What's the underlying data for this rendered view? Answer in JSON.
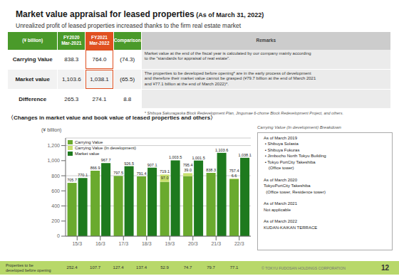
{
  "chart_data": {
    "type": "bar",
    "title": "〈Changes in market value and book value of leased properties and others〉",
    "ylabel": "(¥ billion)",
    "categories": [
      "15/3",
      "16/3",
      "17/3",
      "18/3",
      "19/3",
      "20/3",
      "21/3",
      "22/3"
    ],
    "series": [
      {
        "name": "Carrying Value",
        "color": "#6aaa2e",
        "values": [
          705.7,
          866.9,
          797.5,
          791.4,
          719.1,
          795.4,
          838.3,
          757.4
        ],
        "stacked": true
      },
      {
        "name": "Carrying Value (In development)",
        "color": "#c8e06e",
        "values": [
          0,
          0,
          0,
          0,
          97.0,
          39.0,
          0,
          6.6
        ],
        "value_labels": [
          null,
          null,
          null,
          null,
          "97.0",
          "39.0",
          null,
          "6.6"
        ],
        "stacked": true
      },
      {
        "name": "Market value",
        "color": "#1e7a1e",
        "values": [
          770.1,
          967.7,
          926.5,
          907.1,
          1003.5,
          1001.5,
          1103.6,
          1038.1
        ],
        "value_labels": [
          "770.1",
          "967.7",
          "926.5",
          "907.1",
          "1,003.5",
          "1,001.5",
          "1,103.6",
          "1,038.1"
        ]
      }
    ],
    "ylim": [
      0,
      1300
    ],
    "yticks": [
      0,
      200,
      400,
      600,
      800,
      {
        "value": 1000,
        "label": "1,000"
      },
      {
        "value": 1200,
        "label": "1,200"
      }
    ],
    "grid": true,
    "legend": "upper left",
    "data_labels": true,
    "header": {
      "title": "Market value appraisal for leased properties",
      "title_sub": " (As of March 31, 2022)",
      "subtitle": "Unrealized profit of leased properties increased thanks to the firm real estate market"
    },
    "table": {
      "columns": [
        {
          "text": "(¥ billion)",
          "color": "#4a9a2a"
        },
        {
          "text": "FY2020\nMar-2021",
          "color": "#4a9a2a"
        },
        {
          "text": "FY2021\nMar-2022",
          "color": "#e05020"
        },
        {
          "text": "Comparison",
          "color": "#4a9a2a"
        },
        {
          "text": "Remarks",
          "color": "#cccccc"
        }
      ],
      "rows": [
        {
          "label": "Carrying Value",
          "cells": [
            "838.3",
            "764.0",
            "(74.3)"
          ],
          "remarks": "Market value at the end of the fiscal year is calculated by our company mainly according\nto the \"standards for appraisal of real estate\"."
        },
        {
          "label": "Market value",
          "cells": [
            "1,103.6",
            "1,038.1",
            "(65.5)"
          ],
          "remarks": "The properties to be developed before opening* are in the early process of development\nand therefore their market value cannot be grasped (¥79.7 billion at the end of March 2021\nand ¥77.1 billion at the end of March 2022)*."
        },
        {
          "label": "Difference",
          "cells": [
            "265.3",
            "274.1",
            "8.8"
          ]
        }
      ]
    },
    "footnote": "* Shibuya Sakuragaoka Block Redevelopment Plan, Jingumae 6-chome Block Redevelopment Project, and others.",
    "sidebar": {
      "title": "Carrying Value (In development) Breakdown",
      "content": "As of March 2019\n • Shibuya Solasta\n • Shibuya Fukuras\n • Jimbocho North Tokyu Building\n • Tokyo PortCity Takeshiba\n    (Office tower)\n\nAs of March 2020\nTokyoPortCity Takeshiba\n  (Office tower, Residence tower)\n\nAs of March 2021\nNot applicable\n\nAs of March 2022\nKUDAN-KAIKAN TERRACE"
    },
    "footer": {
      "label": "Properties to be\ndeveloped before opening",
      "values": [
        252.4,
        107.7,
        127.4,
        137.4,
        52.9,
        74.7,
        79.7,
        77.1
      ],
      "color": "#b8d86a"
    },
    "copyright": "© TOKYU FUDOSAN HOLDINGS CORPORATION",
    "page_number": "12"
  }
}
